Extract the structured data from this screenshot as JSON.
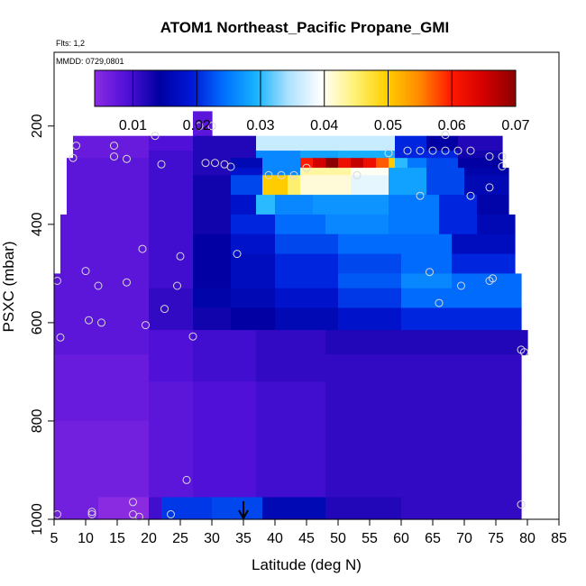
{
  "chart_data": {
    "type": "heatmap",
    "title": "ATOM1 Northeast_Pacific Propane_GMI",
    "flights_label": "Flts: 1,2",
    "dates_label": "MMDD: 0729,0801",
    "xlabel": "Latitude (deg N)",
    "ylabel": "PSXC (mbar)",
    "xlim": [
      5,
      85
    ],
    "ylim": [
      1000,
      50
    ],
    "y_reversed": true,
    "x_ticks": [
      "5",
      "10",
      "15",
      "20",
      "25",
      "30",
      "35",
      "40",
      "45",
      "50",
      "55",
      "60",
      "65",
      "70",
      "75",
      "80",
      "85"
    ],
    "y_ticks": [
      "200",
      "400",
      "600",
      "800",
      "1000"
    ],
    "colorbar": {
      "range": [
        0.004,
        0.07
      ],
      "ticks": [
        "0.01",
        "0.02",
        "0.03",
        "0.04",
        "0.05",
        "0.06",
        "0.07"
      ],
      "colors": [
        "#8a2be2",
        "#5010d8",
        "#0000a0",
        "#0018d8",
        "#0070ff",
        "#18b4ff",
        "#aee2ff",
        "#ffffff",
        "#fff27a",
        "#ffd000",
        "#ff8c00",
        "#ff1a00",
        "#d40000",
        "#8b0000"
      ]
    },
    "marker": {
      "latitude": 35,
      "pressure": 1000
    },
    "layers": [
      {
        "p": [
          170,
          220
        ],
        "segs": [
          [
            27,
            30,
            0.008
          ]
        ]
      },
      {
        "p": [
          220,
          250
        ],
        "segs": [
          [
            8,
            20,
            0.007
          ],
          [
            20,
            27,
            0.009
          ],
          [
            27,
            37,
            0.012
          ],
          [
            37,
            59,
            0.036
          ],
          [
            59,
            64,
            0.02
          ],
          [
            64,
            69,
            0.014
          ],
          [
            69,
            76,
            0.012
          ]
        ]
      },
      {
        "p": [
          250,
          265
        ],
        "segs": [
          [
            8,
            20,
            0.007
          ],
          [
            20,
            27,
            0.01
          ],
          [
            27,
            37,
            0.012
          ],
          [
            37,
            44,
            0.026
          ],
          [
            44,
            50,
            0.028
          ],
          [
            50,
            59,
            0.029
          ],
          [
            59,
            69,
            0.02
          ],
          [
            69,
            76,
            0.013
          ]
        ]
      },
      {
        "p": [
          265,
          285
        ],
        "segs": [
          [
            7,
            20,
            0.008
          ],
          [
            20,
            27,
            0.01
          ],
          [
            27,
            33,
            0.012
          ],
          [
            33,
            38,
            0.016
          ],
          [
            38,
            44,
            0.026
          ],
          [
            44,
            46,
            0.06
          ],
          [
            46,
            48,
            0.065
          ],
          [
            48,
            50,
            0.07
          ],
          [
            50,
            52,
            0.062
          ],
          [
            52,
            54,
            0.066
          ],
          [
            54,
            56,
            0.062
          ],
          [
            56,
            58,
            0.057
          ],
          [
            58,
            59,
            0.05
          ],
          [
            59,
            61,
            0.03
          ],
          [
            61,
            64,
            0.025
          ],
          [
            64,
            69,
            0.022
          ],
          [
            69,
            76,
            0.014
          ]
        ]
      },
      {
        "p": [
          285,
          300
        ],
        "segs": [
          [
            7,
            20,
            0.008
          ],
          [
            20,
            27,
            0.01
          ],
          [
            27,
            33,
            0.012
          ],
          [
            33,
            38,
            0.018
          ],
          [
            38,
            44,
            0.026
          ],
          [
            44,
            52,
            0.043
          ],
          [
            52,
            58,
            0.04
          ],
          [
            58,
            64,
            0.028
          ],
          [
            64,
            70,
            0.022
          ],
          [
            70,
            77,
            0.015
          ]
        ]
      },
      {
        "p": [
          300,
          340
        ],
        "segs": [
          [
            7,
            20,
            0.008
          ],
          [
            20,
            27,
            0.01
          ],
          [
            27,
            33,
            0.013
          ],
          [
            33,
            38,
            0.022
          ],
          [
            38,
            42,
            0.05
          ],
          [
            42,
            44,
            0.045
          ],
          [
            44,
            52,
            0.041
          ],
          [
            52,
            58,
            0.038
          ],
          [
            58,
            64,
            0.028
          ],
          [
            64,
            70,
            0.022
          ],
          [
            70,
            77,
            0.016
          ]
        ]
      },
      {
        "p": [
          340,
          380
        ],
        "segs": [
          [
            7,
            20,
            0.008
          ],
          [
            20,
            27,
            0.01
          ],
          [
            27,
            33,
            0.013
          ],
          [
            33,
            37,
            0.018
          ],
          [
            37,
            40,
            0.03
          ],
          [
            40,
            46,
            0.026
          ],
          [
            46,
            58,
            0.027
          ],
          [
            58,
            66,
            0.025
          ],
          [
            66,
            72,
            0.02
          ],
          [
            72,
            77,
            0.015
          ]
        ]
      },
      {
        "p": [
          380,
          420
        ],
        "segs": [
          [
            6,
            20,
            0.008
          ],
          [
            20,
            27,
            0.01
          ],
          [
            27,
            33,
            0.013
          ],
          [
            33,
            40,
            0.02
          ],
          [
            40,
            48,
            0.024
          ],
          [
            48,
            58,
            0.026
          ],
          [
            58,
            66,
            0.025
          ],
          [
            66,
            72,
            0.02
          ],
          [
            72,
            78,
            0.016
          ]
        ]
      },
      {
        "p": [
          420,
          460
        ],
        "segs": [
          [
            6,
            20,
            0.008
          ],
          [
            20,
            27,
            0.01
          ],
          [
            27,
            33,
            0.014
          ],
          [
            33,
            40,
            0.018
          ],
          [
            40,
            50,
            0.022
          ],
          [
            50,
            60,
            0.024
          ],
          [
            60,
            68,
            0.024
          ],
          [
            68,
            78,
            0.017
          ]
        ]
      },
      {
        "p": [
          460,
          500
        ],
        "segs": [
          [
            6,
            20,
            0.008
          ],
          [
            20,
            27,
            0.01
          ],
          [
            27,
            33,
            0.014
          ],
          [
            33,
            40,
            0.017
          ],
          [
            40,
            50,
            0.02
          ],
          [
            50,
            60,
            0.022
          ],
          [
            60,
            68,
            0.024
          ],
          [
            68,
            78,
            0.02
          ]
        ]
      },
      {
        "p": [
          500,
          530
        ],
        "segs": [
          [
            5,
            20,
            0.008
          ],
          [
            20,
            27,
            0.01
          ],
          [
            27,
            33,
            0.014
          ],
          [
            33,
            40,
            0.017
          ],
          [
            40,
            50,
            0.02
          ],
          [
            50,
            60,
            0.023
          ],
          [
            60,
            68,
            0.026
          ],
          [
            68,
            79,
            0.024
          ]
        ]
      },
      {
        "p": [
          530,
          570
        ],
        "segs": [
          [
            5,
            20,
            0.008
          ],
          [
            20,
            27,
            0.011
          ],
          [
            27,
            33,
            0.015
          ],
          [
            33,
            40,
            0.016
          ],
          [
            40,
            50,
            0.018
          ],
          [
            50,
            60,
            0.021
          ],
          [
            60,
            68,
            0.024
          ],
          [
            68,
            79,
            0.024
          ]
        ]
      },
      {
        "p": [
          570,
          615
        ],
        "segs": [
          [
            5,
            20,
            0.008
          ],
          [
            20,
            27,
            0.011
          ],
          [
            27,
            33,
            0.013
          ],
          [
            33,
            40,
            0.014
          ],
          [
            40,
            50,
            0.016
          ],
          [
            50,
            60,
            0.018
          ],
          [
            60,
            68,
            0.02
          ],
          [
            68,
            79,
            0.02
          ]
        ]
      },
      {
        "p": [
          615,
          665
        ],
        "segs": [
          [
            5,
            20,
            0.008
          ],
          [
            20,
            27,
            0.009
          ],
          [
            27,
            37,
            0.01
          ],
          [
            37,
            48,
            0.011
          ],
          [
            48,
            60,
            0.012
          ],
          [
            60,
            70,
            0.012
          ],
          [
            70,
            80,
            0.012
          ]
        ]
      },
      {
        "p": [
          665,
          720
        ],
        "segs": [
          [
            5,
            20,
            0.007
          ],
          [
            20,
            27,
            0.009
          ],
          [
            27,
            37,
            0.01
          ],
          [
            37,
            48,
            0.011
          ],
          [
            48,
            60,
            0.011
          ],
          [
            60,
            70,
            0.011
          ],
          [
            70,
            79,
            0.011
          ]
        ]
      },
      {
        "p": [
          720,
          800
        ],
        "segs": [
          [
            5,
            20,
            0.007
          ],
          [
            20,
            27,
            0.008
          ],
          [
            27,
            37,
            0.009
          ],
          [
            37,
            48,
            0.01
          ],
          [
            48,
            60,
            0.011
          ],
          [
            60,
            70,
            0.011
          ],
          [
            70,
            79,
            0.011
          ]
        ]
      },
      {
        "p": [
          800,
          880
        ],
        "segs": [
          [
            5,
            20,
            0.006
          ],
          [
            20,
            27,
            0.008
          ],
          [
            27,
            37,
            0.009
          ],
          [
            37,
            48,
            0.01
          ],
          [
            48,
            60,
            0.011
          ],
          [
            60,
            70,
            0.011
          ],
          [
            70,
            79,
            0.011
          ]
        ]
      },
      {
        "p": [
          880,
          955
        ],
        "segs": [
          [
            5,
            20,
            0.006
          ],
          [
            20,
            27,
            0.008
          ],
          [
            27,
            37,
            0.009
          ],
          [
            37,
            48,
            0.01
          ],
          [
            48,
            60,
            0.011
          ],
          [
            60,
            70,
            0.011
          ],
          [
            70,
            79,
            0.011
          ]
        ]
      },
      {
        "p": [
          955,
          1010
        ],
        "segs": [
          [
            5,
            12,
            0.006
          ],
          [
            12,
            20,
            0.004
          ],
          [
            20,
            22,
            0.01
          ],
          [
            22,
            30,
            0.021
          ],
          [
            30,
            38,
            0.022
          ],
          [
            38,
            48,
            0.016
          ],
          [
            48,
            60,
            0.012
          ],
          [
            60,
            70,
            0.011
          ],
          [
            70,
            79,
            0.011
          ]
        ]
      }
    ],
    "points": [
      [
        8.5,
        240
      ],
      [
        8,
        265
      ],
      [
        14.5,
        240
      ],
      [
        14.5,
        262
      ],
      [
        16.5,
        267
      ],
      [
        21,
        220
      ],
      [
        22,
        278
      ],
      [
        28,
        200
      ],
      [
        30,
        200
      ],
      [
        29,
        275
      ],
      [
        30.5,
        275
      ],
      [
        32,
        278
      ],
      [
        33,
        283
      ],
      [
        39,
        300
      ],
      [
        41,
        300
      ],
      [
        43,
        300
      ],
      [
        45,
        285
      ],
      [
        53,
        300
      ],
      [
        58,
        255
      ],
      [
        61,
        250
      ],
      [
        63,
        250
      ],
      [
        65,
        250
      ],
      [
        67,
        218
      ],
      [
        67,
        250
      ],
      [
        69,
        250
      ],
      [
        71,
        250
      ],
      [
        74,
        262
      ],
      [
        76,
        262
      ],
      [
        76,
        282
      ],
      [
        63,
        342
      ],
      [
        71,
        342
      ],
      [
        74,
        325
      ],
      [
        34,
        460
      ],
      [
        25,
        465
      ],
      [
        19,
        450
      ],
      [
        10,
        495
      ],
      [
        12,
        525
      ],
      [
        16.5,
        518
      ],
      [
        24.5,
        525
      ],
      [
        22.5,
        572
      ],
      [
        19.5,
        605
      ],
      [
        10.5,
        595
      ],
      [
        12.5,
        600
      ],
      [
        5.5,
        515
      ],
      [
        6,
        630
      ],
      [
        27,
        628
      ],
      [
        64.5,
        497
      ],
      [
        66,
        560
      ],
      [
        69.5,
        525
      ],
      [
        74.5,
        510
      ],
      [
        74,
        515
      ],
      [
        26,
        920
      ],
      [
        5.5,
        990
      ],
      [
        11,
        985
      ],
      [
        11,
        990
      ],
      [
        17.5,
        965
      ],
      [
        17.5,
        990
      ],
      [
        18.5,
        995
      ],
      [
        23.5,
        990
      ],
      [
        79,
        655
      ],
      [
        79.5,
        660
      ],
      [
        79,
        970
      ]
    ]
  }
}
